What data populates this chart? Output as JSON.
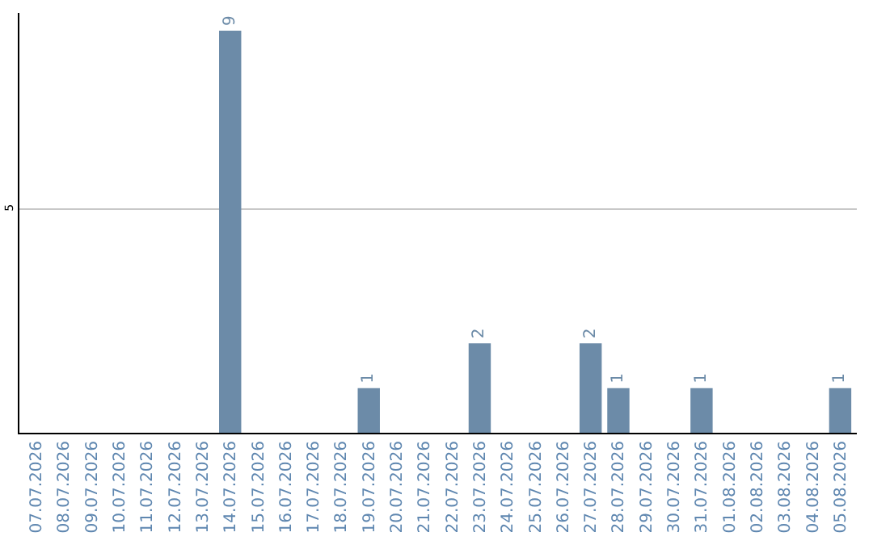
{
  "chart_data": {
    "type": "bar",
    "categories": [
      "07.07.2026",
      "08.07.2026",
      "09.07.2026",
      "10.07.2026",
      "11.07.2026",
      "12.07.2026",
      "13.07.2026",
      "14.07.2026",
      "15.07.2026",
      "16.07.2026",
      "17.07.2026",
      "18.07.2026",
      "19.07.2026",
      "20.07.2026",
      "21.07.2026",
      "22.07.2026",
      "23.07.2026",
      "24.07.2026",
      "25.07.2026",
      "26.07.2026",
      "27.07.2026",
      "28.07.2026",
      "29.07.2026",
      "30.07.2026",
      "31.07.2026",
      "01.08.2026",
      "02.08.2026",
      "03.08.2026",
      "04.08.2026",
      "05.08.2026"
    ],
    "values": [
      0,
      0,
      0,
      0,
      0,
      0,
      0,
      9,
      0,
      0,
      0,
      0,
      1,
      0,
      0,
      0,
      2,
      0,
      0,
      0,
      2,
      1,
      0,
      0,
      1,
      0,
      0,
      0,
      0,
      1
    ],
    "value_labels": [
      null,
      null,
      null,
      null,
      null,
      null,
      null,
      "9",
      null,
      null,
      null,
      null,
      "1",
      null,
      null,
      null,
      "2",
      null,
      null,
      null,
      "2",
      "1",
      null,
      null,
      "1",
      null,
      null,
      null,
      null,
      "1"
    ],
    "color": "#6c8ba8",
    "ylim": [
      0,
      9.4
    ],
    "yticks": [
      5
    ],
    "grid": "y"
  }
}
